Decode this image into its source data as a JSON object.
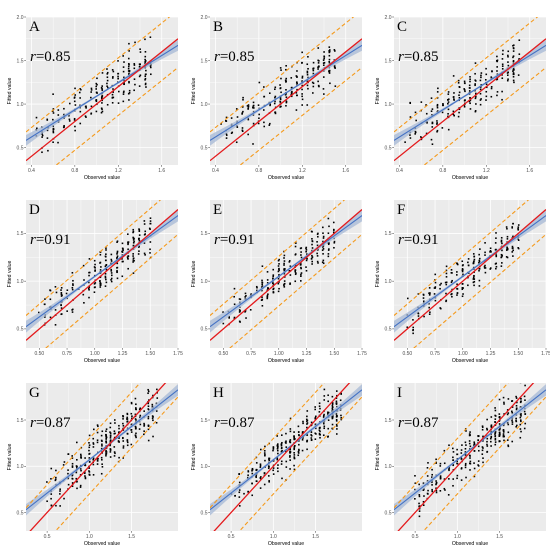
{
  "figure": {
    "xlabel": "Observed value",
    "ylabel": "Fitted value",
    "colors": {
      "panel_bg": "#ebebeb",
      "gridline": "#ffffff",
      "points": "#000000",
      "identity_line": "#e41a1c",
      "fit_line": "#4472c4",
      "fit_band": "#a6b8d6",
      "interval_lines": "#f59a1c"
    }
  },
  "chart_data": [
    {
      "panel": "A",
      "type": "scatter",
      "r_text": "=0.85",
      "r_value": 0.85,
      "xlim": [
        0.35,
        1.75
      ],
      "ylim": [
        0.3,
        2.0
      ],
      "xticks": [
        0.4,
        0.8,
        1.2,
        1.6
      ],
      "xtick_labels": [
        "0.4",
        "0.8",
        "1.2",
        "1.6"
      ],
      "yticks": [
        0.5,
        1.0,
        1.5,
        2.0
      ],
      "ytick_labels": [
        "0.5",
        "1.0",
        "1.5",
        "2.0"
      ],
      "fit": {
        "slope": 0.78,
        "intercept": 0.31
      },
      "interval_offset": 0.33,
      "points_cloud": {
        "x_min": 0.45,
        "x_max": 1.5,
        "noise": 0.13,
        "count": 230
      }
    },
    {
      "panel": "D",
      "type": "scatter",
      "r_text": "=0.91",
      "r_value": 0.91,
      "xlim": [
        0.38,
        1.75
      ],
      "ylim": [
        0.3,
        1.85
      ],
      "xticks": [
        0.5,
        0.75,
        1.0,
        1.25,
        1.5,
        1.75
      ],
      "xtick_labels": [
        "0.50",
        "0.75",
        "1.00",
        "1.25",
        "1.50",
        "1.75"
      ],
      "yticks": [
        0.5,
        1.0,
        1.5
      ],
      "ytick_labels": [
        "0.5",
        "1.0",
        "1.5"
      ],
      "fit": {
        "slope": 0.85,
        "intercept": 0.2
      },
      "interval_offset": 0.26,
      "points_cloud": {
        "x_min": 0.5,
        "x_max": 1.5,
        "noise": 0.1,
        "count": 230
      }
    },
    {
      "panel": "G",
      "type": "scatter",
      "r_text": "=0.87",
      "r_value": 0.87,
      "xlim": [
        0.25,
        2.05
      ],
      "ylim": [
        0.3,
        1.9
      ],
      "xticks": [
        0.5,
        1.0,
        1.5
      ],
      "xtick_labels": [
        "0.5",
        "1.0",
        "1.5"
      ],
      "yticks": [
        0.5,
        1.0,
        1.5
      ],
      "ytick_labels": [
        "0.5",
        "1.0",
        "1.5"
      ],
      "fit": {
        "slope": 0.72,
        "intercept": 0.35
      },
      "interval_offset": 0.3,
      "points_cloud": {
        "x_min": 0.5,
        "x_max": 1.8,
        "noise": 0.12,
        "count": 320
      }
    },
    {
      "panel": "B",
      "type": "scatter",
      "r_text": "=0.85",
      "r_value": 0.85,
      "xlim": [
        0.35,
        1.75
      ],
      "ylim": [
        0.3,
        2.0
      ],
      "xticks": [
        0.4,
        0.8,
        1.2,
        1.6
      ],
      "xtick_labels": [
        "0.4",
        "0.8",
        "1.2",
        "1.6"
      ],
      "yticks": [
        0.5,
        1.0,
        1.5,
        2.0
      ],
      "ytick_labels": [
        "0.5",
        "1.0",
        "1.5",
        "2.0"
      ],
      "fit": {
        "slope": 0.78,
        "intercept": 0.31
      },
      "interval_offset": 0.33,
      "points_cloud": {
        "x_min": 0.45,
        "x_max": 1.5,
        "noise": 0.13,
        "count": 230
      }
    },
    {
      "panel": "E",
      "type": "scatter",
      "r_text": "=0.91",
      "r_value": 0.91,
      "xlim": [
        0.38,
        1.75
      ],
      "ylim": [
        0.3,
        1.85
      ],
      "xticks": [
        0.5,
        0.75,
        1.0,
        1.25,
        1.5,
        1.75
      ],
      "xtick_labels": [
        "0.50",
        "0.75",
        "1.00",
        "1.25",
        "1.50",
        "1.75"
      ],
      "yticks": [
        0.5,
        1.0,
        1.5
      ],
      "ytick_labels": [
        "0.5",
        "1.0",
        "1.5"
      ],
      "fit": {
        "slope": 0.85,
        "intercept": 0.2
      },
      "interval_offset": 0.26,
      "points_cloud": {
        "x_min": 0.5,
        "x_max": 1.5,
        "noise": 0.1,
        "count": 230
      }
    },
    {
      "panel": "H",
      "type": "scatter",
      "r_text": "=0.87",
      "r_value": 0.87,
      "xlim": [
        0.25,
        2.05
      ],
      "ylim": [
        0.3,
        1.9
      ],
      "xticks": [
        0.5,
        1.0,
        1.5
      ],
      "xtick_labels": [
        "0.5",
        "1.0",
        "1.5"
      ],
      "yticks": [
        0.5,
        1.0,
        1.5
      ],
      "ytick_labels": [
        "0.5",
        "1.0",
        "1.5"
      ],
      "fit": {
        "slope": 0.72,
        "intercept": 0.35
      },
      "interval_offset": 0.3,
      "points_cloud": {
        "x_min": 0.5,
        "x_max": 1.8,
        "noise": 0.12,
        "count": 320
      }
    },
    {
      "panel": "C",
      "type": "scatter",
      "r_text": "=0.85",
      "r_value": 0.85,
      "xlim": [
        0.35,
        1.75
      ],
      "ylim": [
        0.3,
        2.0
      ],
      "xticks": [
        0.4,
        0.8,
        1.2,
        1.6
      ],
      "xtick_labels": [
        "0.4",
        "0.8",
        "1.2",
        "1.6"
      ],
      "yticks": [
        0.5,
        1.0,
        1.5,
        2.0
      ],
      "ytick_labels": [
        "0.5",
        "1.0",
        "1.5",
        "2.0"
      ],
      "fit": {
        "slope": 0.78,
        "intercept": 0.31
      },
      "interval_offset": 0.33,
      "points_cloud": {
        "x_min": 0.45,
        "x_max": 1.5,
        "noise": 0.13,
        "count": 230
      }
    },
    {
      "panel": "F",
      "type": "scatter",
      "r_text": "=0.91",
      "r_value": 0.91,
      "xlim": [
        0.38,
        1.75
      ],
      "ylim": [
        0.3,
        1.85
      ],
      "xticks": [
        0.5,
        0.75,
        1.0,
        1.25,
        1.5,
        1.75
      ],
      "xtick_labels": [
        "0.50",
        "0.75",
        "1.00",
        "1.25",
        "1.50",
        "1.75"
      ],
      "yticks": [
        0.5,
        1.0,
        1.5
      ],
      "ytick_labels": [
        "0.5",
        "1.0",
        "1.5"
      ],
      "fit": {
        "slope": 0.85,
        "intercept": 0.2
      },
      "interval_offset": 0.26,
      "points_cloud": {
        "x_min": 0.5,
        "x_max": 1.5,
        "noise": 0.1,
        "count": 230
      }
    },
    {
      "panel": "I",
      "type": "scatter",
      "r_text": "=0.87",
      "r_value": 0.87,
      "xlim": [
        0.25,
        2.05
      ],
      "ylim": [
        0.3,
        1.9
      ],
      "xticks": [
        0.5,
        1.0,
        1.5
      ],
      "xtick_labels": [
        "0.5",
        "1.0",
        "1.5"
      ],
      "yticks": [
        0.5,
        1.0,
        1.5
      ],
      "ytick_labels": [
        "0.5",
        "1.0",
        "1.5"
      ],
      "fit": {
        "slope": 0.72,
        "intercept": 0.35
      },
      "interval_offset": 0.3,
      "points_cloud": {
        "x_min": 0.5,
        "x_max": 1.8,
        "noise": 0.12,
        "count": 320
      }
    }
  ]
}
